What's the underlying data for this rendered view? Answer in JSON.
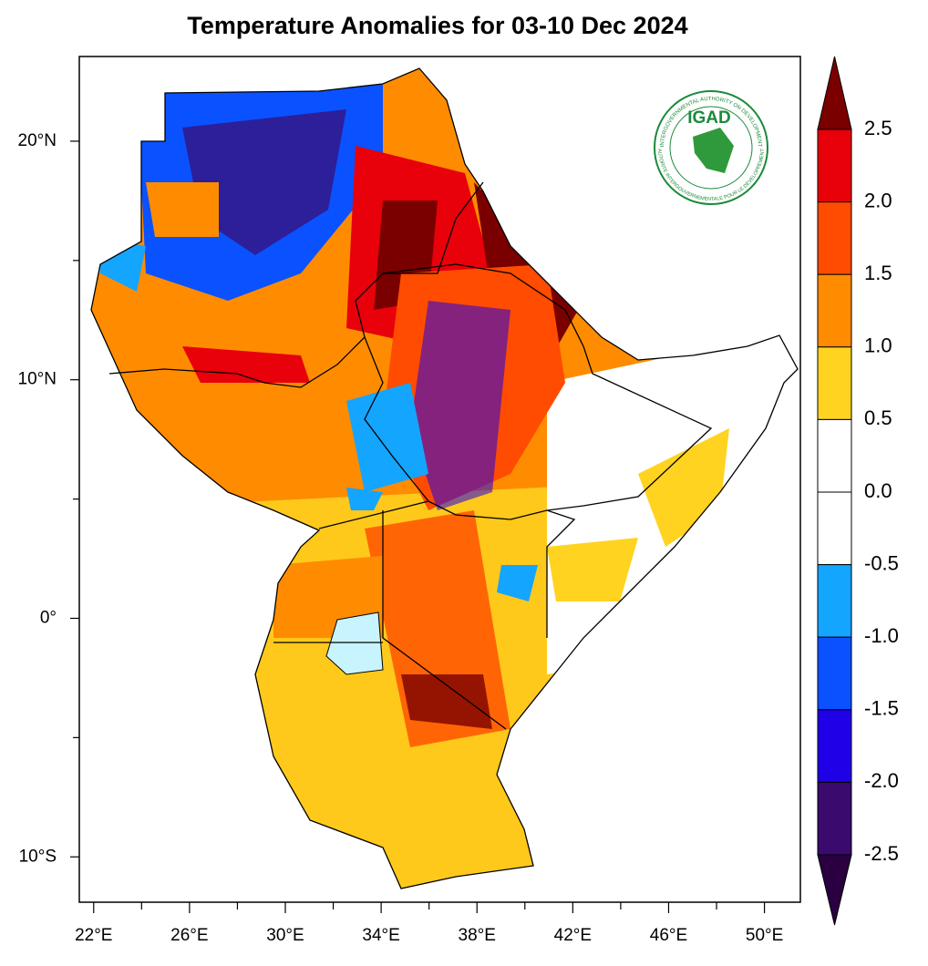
{
  "map": {
    "title": "Temperature Anomalies for 03-10 Dec 2024",
    "xlim": [
      21.4,
      51.5
    ],
    "ylim": [
      -11.9,
      23.55
    ],
    "lon_ticks": [
      {
        "value": 22,
        "label": "22°E"
      },
      {
        "value": 26,
        "label": "26°E"
      },
      {
        "value": 30,
        "label": "30°E"
      },
      {
        "value": 34,
        "label": "34°E"
      },
      {
        "value": 38,
        "label": "38°E"
      },
      {
        "value": 42,
        "label": "42°E"
      },
      {
        "value": 46,
        "label": "46°E"
      },
      {
        "value": 50,
        "label": "50°E"
      }
    ],
    "lon_minor_ticks": [
      24,
      28,
      32,
      36,
      40,
      44,
      48
    ],
    "lat_ticks": [
      {
        "value": 20,
        "label": "20°N"
      },
      {
        "value": 10,
        "label": "10°N"
      },
      {
        "value": 0,
        "label": "0°"
      },
      {
        "value": -10,
        "label": "10°S"
      }
    ],
    "lat_minor_ticks": [
      15,
      5,
      -5
    ],
    "colorbar": {
      "levels": [
        {
          "value": 2.5,
          "label": "2.5"
        },
        {
          "value": 2,
          "label": "2.0"
        },
        {
          "value": 1.5,
          "label": "1.5"
        },
        {
          "value": 1,
          "label": "1.0"
        },
        {
          "value": 0.5,
          "label": "0.5"
        },
        {
          "value": 0,
          "label": "0.0"
        },
        {
          "value": -0.5,
          "label": "-0.5"
        },
        {
          "value": -1,
          "label": "-1.0"
        },
        {
          "value": -1.5,
          "label": "-1.5"
        },
        {
          "value": -2,
          "label": "-2.0"
        },
        {
          "value": -2.5,
          "label": "-2.5"
        }
      ],
      "colors": [
        "#7a0000",
        "#e8000b",
        "#ff4c00",
        "#ff8c00",
        "#ffd320",
        "#ffffff",
        "#ffffff",
        "#14a5ff",
        "#0a52ff",
        "#2000e6",
        "#3a0a6e",
        "#2a0040"
      ]
    },
    "logo": {
      "name": "IGAD",
      "motto_top": "INTERGOVERNMENTAL AUTHORITY ON DEVELOPMENT",
      "motto_bottom": "AUTORITE INTERGOUVERNEMENTALE POUR LE DEVELOPPEMENT"
    }
  }
}
